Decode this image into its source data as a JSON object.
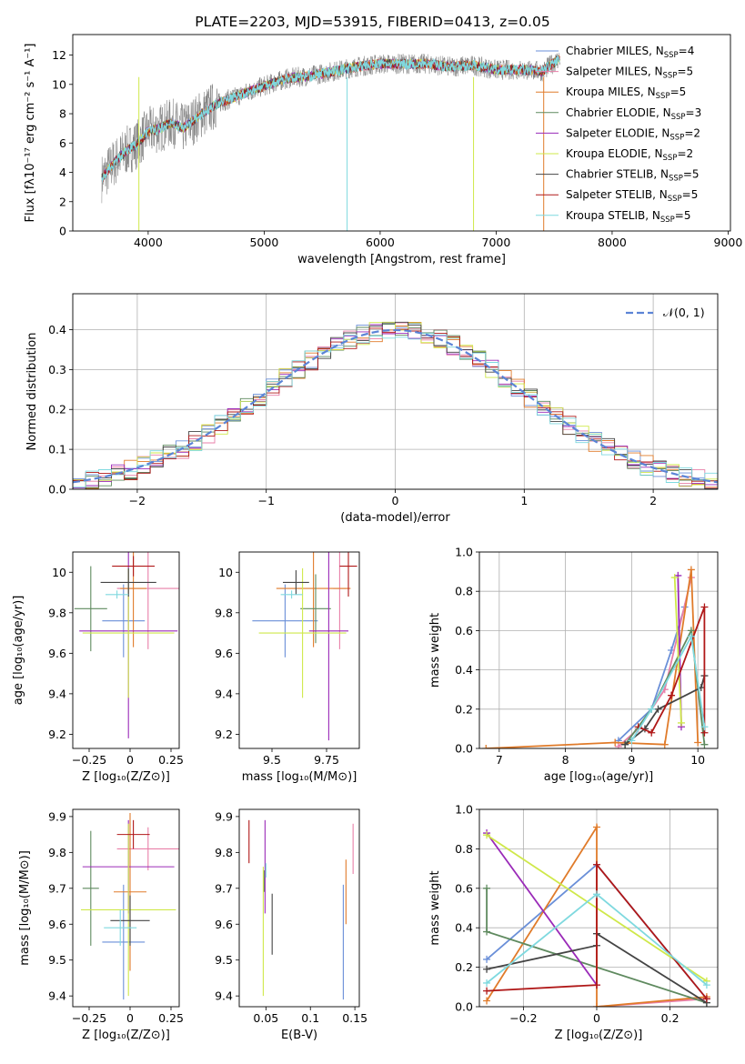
{
  "figure": {
    "title": "PLATE=2203, MJD=53915, FIBERID=0413, z=0.05"
  },
  "models": [
    {
      "name": "Chabrier MILES",
      "nssp": 4,
      "color": "#6a8fd8"
    },
    {
      "name": "Salpeter MILES",
      "nssp": 5,
      "color": "#e87fa8"
    },
    {
      "name": "Kroupa MILES",
      "nssp": 5,
      "color": "#e07b2a"
    },
    {
      "name": "Chabrier ELODIE",
      "nssp": 3,
      "color": "#5f8a5f"
    },
    {
      "name": "Salpeter ELODIE",
      "nssp": 2,
      "color": "#9a2ab8"
    },
    {
      "name": "Kroupa ELODIE",
      "nssp": 2,
      "color": "#cfe84a"
    },
    {
      "name": "Chabrier STELIB",
      "nssp": 5,
      "color": "#444444"
    },
    {
      "name": "Salpeter STELIB",
      "nssp": 5,
      "color": "#b01818"
    },
    {
      "name": "Kroupa STELIB",
      "nssp": 5,
      "color": "#7fd9df"
    }
  ],
  "chart_data": [
    {
      "id": "spectrum",
      "type": "line",
      "xlabel": "wavelength [Angstrom, rest frame]",
      "ylabel": "Flux [fλ10⁻¹⁷ erg cm⁻² s⁻¹ A⁻¹]",
      "xlim": [
        3350,
        9020
      ],
      "ylim": [
        0,
        13.4
      ],
      "xticks": [
        4000,
        5000,
        6000,
        7000,
        8000,
        9000
      ],
      "yticks": [
        0,
        2,
        4,
        6,
        8,
        10,
        12
      ],
      "data_color": "#808080",
      "continuum": {
        "x": [
          3600,
          3700,
          3800,
          3900,
          4000,
          4100,
          4200,
          4300,
          4400,
          4500,
          4600,
          4800,
          5000,
          5200,
          5400,
          5600,
          5800,
          6000,
          6200,
          6400,
          6600,
          6800,
          7000,
          7200,
          7400,
          7550
        ],
        "y": [
          3.6,
          4.6,
          5.4,
          5.9,
          6.8,
          7.0,
          7.4,
          7.0,
          7.6,
          8.2,
          8.7,
          9.3,
          9.9,
          10.4,
          10.6,
          10.9,
          11.2,
          11.4,
          11.4,
          11.4,
          11.2,
          11.3,
          11.0,
          11.0,
          10.9,
          11.8
        ]
      }
    },
    {
      "id": "residuals",
      "type": "histogram",
      "xlabel": "(data-model)/error",
      "ylabel": "Normed distribution",
      "xlim": [
        -2.5,
        2.5
      ],
      "ylim": [
        0,
        0.49
      ],
      "xticks": [
        -2,
        -1,
        0,
        1,
        2
      ],
      "yticks": [
        0.0,
        0.1,
        0.2,
        0.3,
        0.4
      ],
      "grid": true,
      "legend": "N(0,1)",
      "legend_position": "top-right",
      "curve_color": "#5b84d6",
      "bin_width": 0.1
    },
    {
      "id": "age-vs-z",
      "type": "errorbar",
      "xlabel": "Z [log₁₀(Z/Z⊙)]",
      "ylabel": "age  [log₁₀(age/yr)]",
      "xlim": [
        -0.35,
        0.3
      ],
      "ylim": [
        9.13,
        10.1
      ],
      "xticks": [
        -0.25,
        0.0,
        0.25
      ],
      "yticks": [
        9.2,
        9.4,
        9.6,
        9.8,
        10.0
      ],
      "points": [
        {
          "m": 0,
          "x": -0.04,
          "y": 9.76,
          "xe": 0.13,
          "ye": 0.18
        },
        {
          "m": 1,
          "x": 0.11,
          "y": 9.92,
          "xe": 0.19,
          "ye": 0.3
        },
        {
          "m": 2,
          "x": 0.02,
          "y": 9.92,
          "xe": 0.08,
          "ye": 0.29
        },
        {
          "m": 3,
          "x": -0.24,
          "y": 9.82,
          "xe": 0.1,
          "ye": 0.21
        },
        {
          "m": 4,
          "x": -0.01,
          "y": 9.71,
          "xe": 0.3,
          "ye": 0.53
        },
        {
          "m": 5,
          "x": -0.01,
          "y": 9.7,
          "xe": 0.28,
          "ye": 0.32
        },
        {
          "m": 6,
          "x": -0.01,
          "y": 9.95,
          "xe": 0.17,
          "ye": 0.07
        },
        {
          "m": 7,
          "x": 0.02,
          "y": 10.03,
          "xe": 0.13,
          "ye": 0.05
        },
        {
          "m": 8,
          "x": -0.08,
          "y": 9.89,
          "xe": 0.07,
          "ye": 0.02
        }
      ]
    },
    {
      "id": "age-vs-mass",
      "type": "errorbar",
      "xlabel": "mass [log₁₀(M/M⊙)]",
      "ylabel": "",
      "xlim": [
        9.35,
        9.9
      ],
      "ylim": [
        9.13,
        10.1
      ],
      "xticks": [
        9.5,
        9.75
      ],
      "yticks": [
        9.2,
        9.4,
        9.6,
        9.8,
        10.0
      ],
      "points": [
        {
          "m": 0,
          "x": 9.56,
          "y": 9.76,
          "xe": 0.15,
          "ye": 0.18
        },
        {
          "m": 1,
          "x": 9.81,
          "y": 9.92,
          "xe": 0.03,
          "ye": 0.3
        },
        {
          "m": 2,
          "x": 9.69,
          "y": 9.92,
          "xe": 0.17,
          "ye": 0.29
        },
        {
          "m": 3,
          "x": 9.7,
          "y": 9.82,
          "xe": 0.07,
          "ye": 0.17
        },
        {
          "m": 4,
          "x": 9.76,
          "y": 9.71,
          "xe": 0.09,
          "ye": 0.54
        },
        {
          "m": 5,
          "x": 9.64,
          "y": 9.7,
          "xe": 0.2,
          "ye": 0.32
        },
        {
          "m": 6,
          "x": 9.61,
          "y": 9.95,
          "xe": 0.06,
          "ye": 0.06
        },
        {
          "m": 7,
          "x": 9.85,
          "y": 10.03,
          "xe": 0.04,
          "ye": 0.15
        },
        {
          "m": 8,
          "x": 9.59,
          "y": 9.89,
          "xe": 0.05,
          "ye": 0.02
        }
      ]
    },
    {
      "id": "mass-weight-vs-age",
      "type": "line",
      "xlabel": "age  [log₁₀(age/yr)]",
      "ylabel": "mass weight",
      "xlim": [
        6.7,
        10.3
      ],
      "ylim": [
        0,
        1.0
      ],
      "xticks": [
        7,
        8,
        9,
        10
      ],
      "yticks": [
        0.0,
        0.2,
        0.4,
        0.6,
        0.8,
        1.0
      ],
      "grid": true,
      "series": [
        {
          "m": 0,
          "x": [
            8.8,
            9.3,
            9.6,
            9.8
          ],
          "y": [
            0.04,
            0.2,
            0.5,
            0.72
          ]
        },
        {
          "m": 1,
          "x": [
            8.8,
            9.1,
            9.5,
            9.9
          ],
          "y": [
            0.01,
            0.1,
            0.3,
            0.87
          ]
        },
        {
          "m": 2,
          "x": [
            6.8,
            8.75,
            9.5,
            9.9,
            10.0
          ],
          "y": [
            0.0,
            0.03,
            0.02,
            0.91,
            0.03
          ]
        },
        {
          "m": 3,
          "x": [
            8.9,
            9.3,
            9.9,
            10.1
          ],
          "y": [
            0.02,
            0.2,
            0.6,
            0.02
          ]
        },
        {
          "m": 4,
          "x": [
            9.7,
            9.75
          ],
          "y": [
            0.88,
            0.11
          ]
        },
        {
          "m": 5,
          "x": [
            9.65,
            9.75
          ],
          "y": [
            0.87,
            0.13
          ]
        },
        {
          "m": 6,
          "x": [
            8.9,
            9.2,
            9.4,
            10.05,
            10.1
          ],
          "y": [
            0.02,
            0.1,
            0.2,
            0.31,
            0.37
          ]
        },
        {
          "m": 7,
          "x": [
            9.1,
            9.3,
            9.6,
            10.1,
            10.1
          ],
          "y": [
            0.11,
            0.08,
            0.27,
            0.72,
            0.08
          ]
        },
        {
          "m": 8,
          "x": [
            9.0,
            9.3,
            9.9,
            10.1
          ],
          "y": [
            0.04,
            0.2,
            0.57,
            0.11
          ]
        }
      ]
    },
    {
      "id": "mass-vs-z",
      "type": "errorbar",
      "xlabel": "Z [log₁₀(Z/Z⊙)]",
      "ylabel": "mass [log₁₀(M/M⊙)]",
      "xlim": [
        -0.35,
        0.3
      ],
      "ylim": [
        9.37,
        9.92
      ],
      "xticks": [
        -0.25,
        0.0,
        0.25
      ],
      "yticks": [
        9.4,
        9.5,
        9.6,
        9.7,
        9.8,
        9.9
      ],
      "points": [
        {
          "m": 0,
          "x": -0.04,
          "y": 9.55,
          "xe": 0.13,
          "ye": 0.16
        },
        {
          "m": 1,
          "x": 0.11,
          "y": 9.81,
          "xe": 0.19,
          "ye": 0.06
        },
        {
          "m": 2,
          "x": 0.0,
          "y": 9.69,
          "xe": 0.1,
          "ye": 0.22
        },
        {
          "m": 3,
          "x": -0.24,
          "y": 9.7,
          "xe": 0.05,
          "ye": 0.16
        },
        {
          "m": 4,
          "x": -0.01,
          "y": 9.76,
          "xe": 0.28,
          "ye": 0.13
        },
        {
          "m": 5,
          "x": -0.01,
          "y": 9.64,
          "xe": 0.29,
          "ye": 0.24
        },
        {
          "m": 6,
          "x": 0.0,
          "y": 9.61,
          "xe": 0.12,
          "ye": 0.07
        },
        {
          "m": 7,
          "x": 0.02,
          "y": 9.85,
          "xe": 0.1,
          "ye": 0.04
        },
        {
          "m": 8,
          "x": -0.06,
          "y": 9.59,
          "xe": 0.1,
          "ye": 0.05
        }
      ]
    },
    {
      "id": "mass-vs-ebv",
      "type": "errorbar",
      "xlabel": "E(B-V)",
      "ylabel": "",
      "xlim": [
        0.02,
        0.155
      ],
      "ylim": [
        9.37,
        9.92
      ],
      "xticks": [
        0.05,
        0.1,
        0.15
      ],
      "yticks": [
        9.4,
        9.5,
        9.6,
        9.7,
        9.8,
        9.9
      ],
      "points": [
        {
          "m": 0,
          "x": 0.137,
          "y": 9.55,
          "xe": 0.0,
          "ye": 0.16
        },
        {
          "m": 1,
          "x": 0.148,
          "y": 9.81,
          "xe": 0.0,
          "ye": 0.07
        },
        {
          "m": 2,
          "x": 0.14,
          "y": 9.69,
          "xe": 0.0,
          "ye": 0.09
        },
        {
          "m": 3,
          "x": 0.048,
          "y": 9.72,
          "xe": 0.0,
          "ye": 0.03
        },
        {
          "m": 4,
          "x": 0.049,
          "y": 9.76,
          "xe": 0.0,
          "ye": 0.13
        },
        {
          "m": 5,
          "x": 0.047,
          "y": 9.58,
          "xe": 0.0,
          "ye": 0.18
        },
        {
          "m": 6,
          "x": 0.057,
          "y": 9.6,
          "xe": 0.0,
          "ye": 0.085
        },
        {
          "m": 7,
          "x": 0.031,
          "y": 9.83,
          "xe": 0.0,
          "ye": 0.06
        },
        {
          "m": 8,
          "x": 0.05,
          "y": 9.75,
          "xe": 0.0,
          "ye": 0.02
        }
      ]
    },
    {
      "id": "mass-weight-vs-z",
      "type": "line",
      "xlabel": "Z [log₁₀(Z/Z⊙)]",
      "ylabel": "mass weight",
      "xlim": [
        -0.32,
        0.33
      ],
      "ylim": [
        0,
        1.0
      ],
      "xticks": [
        -0.2,
        0.0,
        0.2
      ],
      "yticks": [
        0.0,
        0.2,
        0.4,
        0.6,
        0.8,
        1.0
      ],
      "grid": true,
      "series": [
        {
          "m": 0,
          "x": [
            -0.3,
            0.0,
            0.3
          ],
          "y": [
            0.24,
            0.72,
            0.04
          ]
        },
        {
          "m": 1,
          "x": [
            0.0,
            0.3
          ],
          "y": [
            0.0,
            0.04
          ]
        },
        {
          "m": 2,
          "x": [
            -0.3,
            0.0,
            0.0,
            0.3
          ],
          "y": [
            0.03,
            0.91,
            0.0,
            0.05
          ]
        },
        {
          "m": 3,
          "x": [
            -0.3,
            -0.3,
            0.3
          ],
          "y": [
            0.6,
            0.38,
            0.02
          ]
        },
        {
          "m": 4,
          "x": [
            -0.3,
            0.0
          ],
          "y": [
            0.88,
            0.11
          ]
        },
        {
          "m": 5,
          "x": [
            -0.3,
            0.3
          ],
          "y": [
            0.87,
            0.13
          ]
        },
        {
          "m": 6,
          "x": [
            -0.3,
            0.0,
            0.0,
            0.3
          ],
          "y": [
            0.19,
            0.31,
            0.37,
            0.02
          ]
        },
        {
          "m": 7,
          "x": [
            -0.3,
            0.0,
            0.0,
            0.3
          ],
          "y": [
            0.08,
            0.11,
            0.72,
            0.04
          ]
        },
        {
          "m": 8,
          "x": [
            -0.3,
            0.0,
            0.3
          ],
          "y": [
            0.12,
            0.57,
            0.11
          ]
        }
      ]
    }
  ]
}
